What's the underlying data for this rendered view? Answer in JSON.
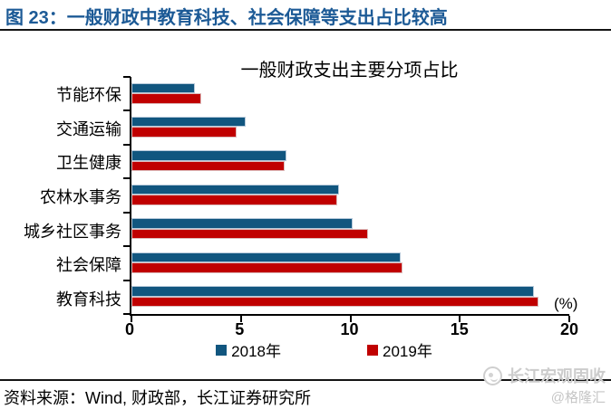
{
  "header": {
    "title": "图 23：一般财政中教育科技、社会保障等支出占比较高"
  },
  "chart_data": {
    "type": "bar",
    "orientation": "horizontal",
    "title": "一般财政支出主要分项占比",
    "unit_label": "(%)",
    "categories": [
      "节能环保",
      "交通运输",
      "卫生健康",
      "农林水事务",
      "城乡社区事务",
      "社会保障",
      "教育科技"
    ],
    "series": [
      {
        "name": "2018年",
        "color": "#11567f",
        "edge_color": "#b6c9da",
        "values": [
          2.9,
          5.2,
          7.1,
          9.5,
          10.1,
          12.3,
          18.4
        ]
      },
      {
        "name": "2019年",
        "color": "#c00000",
        "edge_color": "#ddbcbc",
        "values": [
          3.2,
          4.8,
          7.0,
          9.4,
          10.8,
          12.4,
          18.6
        ]
      }
    ],
    "xlim": [
      0,
      20
    ],
    "x_ticks": [
      0,
      5,
      10,
      15,
      20
    ],
    "grid": false,
    "legend_position": "bottom"
  },
  "footer": {
    "source": "资料来源：Wind, 财政部，长江证券研究所"
  },
  "watermark": {
    "brand": "长江宏观固收",
    "handle": "@格隆汇"
  },
  "colors": {
    "figure_title": "#1c5a96",
    "axis": "#000000",
    "rule": "#141414",
    "watermark": "#cccccc"
  }
}
